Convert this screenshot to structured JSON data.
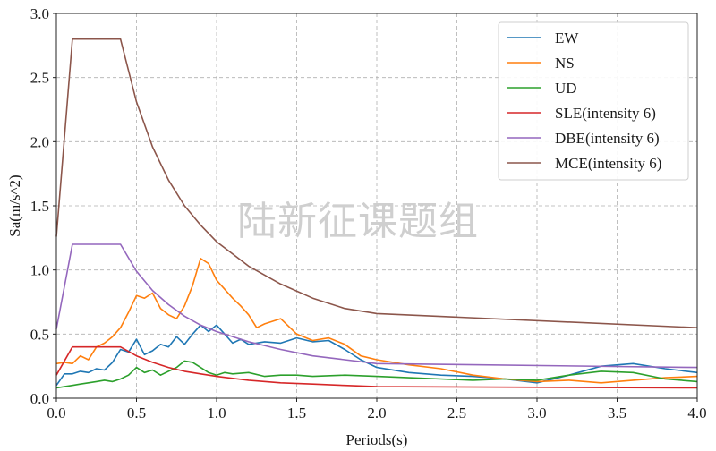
{
  "watermark": "陆新征课题组",
  "chart_data": {
    "type": "line",
    "xlabel": "Periods(s)",
    "ylabel": "Sa(m/s^2)",
    "xlim": [
      0,
      4.0
    ],
    "ylim": [
      0,
      3.0
    ],
    "xticks": [
      0,
      0.5,
      1.0,
      1.5,
      2.0,
      2.5,
      3.0,
      3.5,
      4.0
    ],
    "xtick_labels": [
      "0.0",
      "0.5",
      "1.0",
      "1.5",
      "2.0",
      "2.5",
      "3.0",
      "3.5",
      "4.0"
    ],
    "yticks": [
      0,
      0.5,
      1.0,
      1.5,
      2.0,
      2.5,
      3.0
    ],
    "ytick_labels": [
      "0.0",
      "0.5",
      "1.0",
      "1.5",
      "2.0",
      "2.5",
      "3.0"
    ],
    "grid": true,
    "legend_position": "top-right",
    "series": [
      {
        "name": "EW",
        "color": "#1f77b4",
        "x": [
          0,
          0.05,
          0.1,
          0.15,
          0.2,
          0.25,
          0.3,
          0.35,
          0.4,
          0.45,
          0.5,
          0.55,
          0.6,
          0.65,
          0.7,
          0.75,
          0.8,
          0.85,
          0.9,
          0.95,
          1.0,
          1.05,
          1.1,
          1.15,
          1.2,
          1.3,
          1.4,
          1.5,
          1.6,
          1.7,
          1.8,
          1.9,
          2.0,
          2.2,
          2.4,
          2.6,
          2.8,
          3.0,
          3.2,
          3.4,
          3.6,
          3.8,
          4.0
        ],
        "y": [
          0.1,
          0.19,
          0.19,
          0.21,
          0.2,
          0.23,
          0.22,
          0.28,
          0.38,
          0.36,
          0.46,
          0.34,
          0.37,
          0.42,
          0.4,
          0.48,
          0.42,
          0.5,
          0.57,
          0.52,
          0.57,
          0.5,
          0.43,
          0.46,
          0.42,
          0.44,
          0.43,
          0.47,
          0.44,
          0.45,
          0.38,
          0.3,
          0.24,
          0.2,
          0.18,
          0.17,
          0.15,
          0.12,
          0.18,
          0.25,
          0.27,
          0.23,
          0.2
        ]
      },
      {
        "name": "NS",
        "color": "#ff7f0e",
        "x": [
          0,
          0.05,
          0.1,
          0.15,
          0.2,
          0.25,
          0.3,
          0.35,
          0.4,
          0.45,
          0.5,
          0.55,
          0.6,
          0.65,
          0.7,
          0.75,
          0.8,
          0.85,
          0.9,
          0.95,
          1.0,
          1.05,
          1.1,
          1.15,
          1.2,
          1.25,
          1.3,
          1.4,
          1.5,
          1.6,
          1.7,
          1.8,
          1.9,
          2.0,
          2.2,
          2.4,
          2.6,
          2.8,
          3.0,
          3.2,
          3.4,
          3.6,
          3.8,
          4.0
        ],
        "y": [
          0.27,
          0.28,
          0.27,
          0.33,
          0.3,
          0.4,
          0.43,
          0.48,
          0.55,
          0.67,
          0.8,
          0.78,
          0.82,
          0.7,
          0.65,
          0.62,
          0.72,
          0.88,
          1.09,
          1.05,
          0.92,
          0.85,
          0.78,
          0.72,
          0.65,
          0.55,
          0.58,
          0.62,
          0.5,
          0.45,
          0.47,
          0.42,
          0.33,
          0.3,
          0.26,
          0.23,
          0.18,
          0.15,
          0.13,
          0.14,
          0.12,
          0.14,
          0.16,
          0.17
        ]
      },
      {
        "name": "UD",
        "color": "#2ca02c",
        "x": [
          0,
          0.05,
          0.1,
          0.15,
          0.2,
          0.25,
          0.3,
          0.35,
          0.4,
          0.45,
          0.5,
          0.55,
          0.6,
          0.65,
          0.7,
          0.75,
          0.8,
          0.85,
          0.9,
          0.95,
          1.0,
          1.05,
          1.1,
          1.2,
          1.3,
          1.4,
          1.5,
          1.6,
          1.8,
          2.0,
          2.2,
          2.4,
          2.6,
          2.8,
          3.0,
          3.2,
          3.4,
          3.6,
          3.8,
          4.0
        ],
        "y": [
          0.08,
          0.09,
          0.1,
          0.11,
          0.12,
          0.13,
          0.14,
          0.13,
          0.15,
          0.18,
          0.24,
          0.2,
          0.22,
          0.18,
          0.21,
          0.24,
          0.29,
          0.28,
          0.24,
          0.2,
          0.18,
          0.2,
          0.19,
          0.2,
          0.17,
          0.18,
          0.18,
          0.17,
          0.18,
          0.17,
          0.16,
          0.15,
          0.14,
          0.15,
          0.14,
          0.18,
          0.21,
          0.2,
          0.15,
          0.13
        ]
      },
      {
        "name": "SLE(intensity 6)",
        "color": "#d62728",
        "x": [
          0,
          0.1,
          0.4,
          0.5,
          0.6,
          0.7,
          0.8,
          0.9,
          1.0,
          1.2,
          1.4,
          1.6,
          1.8,
          2.0,
          4.0
        ],
        "y": [
          0.18,
          0.4,
          0.4,
          0.33,
          0.28,
          0.24,
          0.21,
          0.19,
          0.17,
          0.14,
          0.12,
          0.11,
          0.1,
          0.09,
          0.08
        ]
      },
      {
        "name": "DBE(intensity 6)",
        "color": "#9467bd",
        "x": [
          0,
          0.1,
          0.4,
          0.5,
          0.6,
          0.7,
          0.8,
          0.9,
          1.0,
          1.2,
          1.4,
          1.6,
          1.8,
          2.0,
          4.0
        ],
        "y": [
          0.54,
          1.2,
          1.2,
          0.99,
          0.84,
          0.73,
          0.64,
          0.57,
          0.52,
          0.44,
          0.38,
          0.33,
          0.3,
          0.27,
          0.24
        ]
      },
      {
        "name": "MCE(intensity 6)",
        "color": "#8c564b",
        "x": [
          0,
          0.1,
          0.4,
          0.5,
          0.6,
          0.7,
          0.8,
          0.9,
          1.0,
          1.2,
          1.4,
          1.6,
          1.8,
          2.0,
          4.0
        ],
        "y": [
          1.26,
          2.8,
          2.8,
          2.31,
          1.96,
          1.7,
          1.5,
          1.35,
          1.22,
          1.03,
          0.89,
          0.78,
          0.7,
          0.66,
          0.55
        ]
      }
    ]
  }
}
